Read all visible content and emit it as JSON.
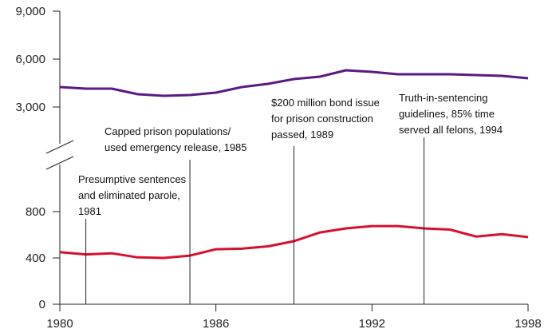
{
  "chart_data": {
    "type": "line",
    "x": [
      1980,
      1981,
      1982,
      1983,
      1984,
      1985,
      1986,
      1987,
      1988,
      1989,
      1990,
      1991,
      1992,
      1993,
      1994,
      1995,
      1996,
      1997,
      1998
    ],
    "xlim": [
      1980,
      1998
    ],
    "xticks": [
      1980,
      1986,
      1992,
      1998
    ],
    "ylim": [
      0,
      1200
    ],
    "yticks": [
      0,
      400,
      800
    ],
    "y2lim": [
      800,
      9000
    ],
    "y2ticks": [
      {
        "value": 3000,
        "label": "3,000"
      },
      {
        "value": 6000,
        "label": "6,000"
      },
      {
        "value": 9000,
        "label": "9,000"
      }
    ],
    "series": [
      {
        "color": "#5b1a82",
        "axis": "y2",
        "values": [
          4250,
          4150,
          4150,
          3800,
          3700,
          3750,
          3900,
          4250,
          4450,
          4750,
          4900,
          5300,
          5200,
          5050,
          5050,
          5050,
          5000,
          4950,
          4800
        ]
      },
      {
        "color": "#d8102f",
        "values": [
          450,
          430,
          440,
          405,
          400,
          420,
          475,
          480,
          500,
          545,
          620,
          655,
          675,
          675,
          655,
          645,
          585,
          605,
          580
        ]
      }
    ],
    "annotations": [
      {
        "lines": [
          "Presumptive sentences",
          "and eliminated parole,",
          "1981"
        ],
        "x": 1981
      },
      {
        "lines": [
          "Capped prison populations/",
          "used emergency release, 1985"
        ],
        "x": 1985
      },
      {
        "lines": [
          "$200 million bond issue",
          "for prison construction",
          "passed, 1989"
        ],
        "x": 1989
      },
      {
        "lines": [
          "Truth-in-sentencing",
          "guidelines, 85% time",
          "served all felons, 1994"
        ],
        "x": 1994
      }
    ]
  }
}
